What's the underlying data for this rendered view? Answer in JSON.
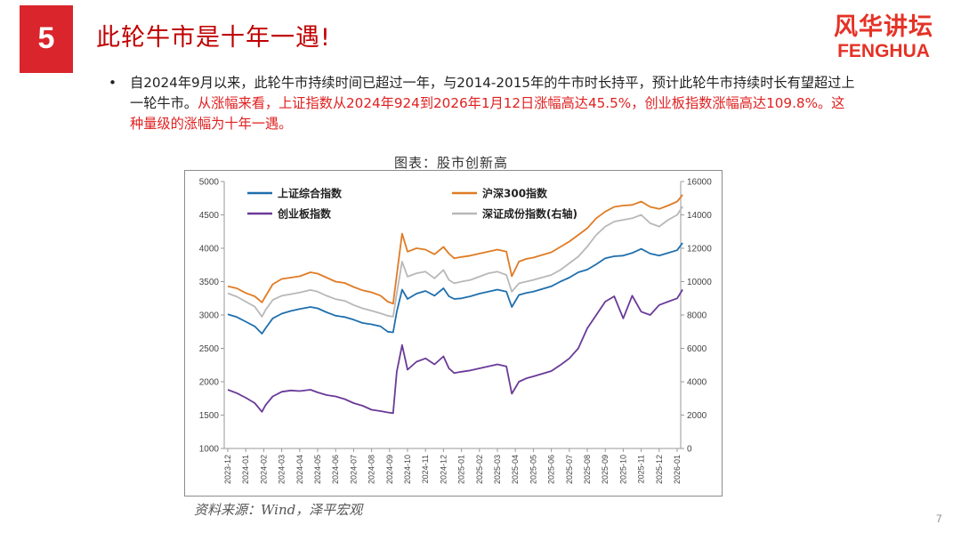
{
  "slide": {
    "number": "5",
    "title": "此轮牛市是十年一遇!",
    "page_number": "7",
    "bullet_marker": "•",
    "bullet_text_black": "自2024年9月以来，此轮牛市持续时间已超过一年，与2014-2015年的牛市时长持平，预计此轮牛市持续时长有望超过上一轮牛市。",
    "bullet_text_red": "从涨幅来看，上证指数从2024年924到2026年1月12日涨幅高达45.5%，创业板指数涨幅高达109.8%。这种量级的涨幅为十年一遇。"
  },
  "logo": {
    "cn": "风华讲坛",
    "en": "FENGHUA"
  },
  "figure": {
    "title": "图表：股市创新高",
    "source": "资料来源：Wind，泽平宏观"
  },
  "colors": {
    "accent_red": "#d9252b",
    "sse": "#1f6fae",
    "csi300": "#e07b24",
    "chinext": "#6a3a98",
    "szse": "#b8b8b8"
  },
  "chart_data": {
    "type": "line",
    "x_tick_labels": [
      "2023-12",
      "2024-01",
      "2024-02",
      "2024-03",
      "2024-04",
      "2024-05",
      "2024-06",
      "2024-07",
      "2024-08",
      "2024-09",
      "2024-10",
      "2024-11",
      "2024-12",
      "2025-01",
      "2025-02",
      "2025-03",
      "2025-04",
      "2025-05",
      "2025-06",
      "2025-07",
      "2025-08",
      "2025-09",
      "2025-10",
      "2025-11",
      "2025-12",
      "2026-01"
    ],
    "y_left": {
      "min": 1000,
      "max": 5000,
      "ticks": [
        1000,
        1500,
        2000,
        2500,
        3000,
        3500,
        4000,
        4500,
        5000
      ]
    },
    "y_right": {
      "min": 0,
      "max": 16000,
      "ticks": [
        0,
        2000,
        4000,
        6000,
        8000,
        10000,
        12000,
        14000,
        16000
      ]
    },
    "legend_placement": "top-left, two columns inside plot",
    "grid": false,
    "series": [
      {
        "name": "上证综合指数",
        "axis": "left",
        "color": "#1f6fae",
        "points": [
          [
            0,
            3010
          ],
          [
            0.5,
            2970
          ],
          [
            1.0,
            2900
          ],
          [
            1.5,
            2830
          ],
          [
            1.9,
            2720
          ],
          [
            2.1,
            2800
          ],
          [
            2.5,
            2950
          ],
          [
            3.0,
            3020
          ],
          [
            3.5,
            3060
          ],
          [
            4.0,
            3090
          ],
          [
            4.6,
            3120
          ],
          [
            5.0,
            3100
          ],
          [
            5.5,
            3040
          ],
          [
            6.0,
            2990
          ],
          [
            6.5,
            2970
          ],
          [
            7.0,
            2930
          ],
          [
            7.5,
            2880
          ],
          [
            8.0,
            2860
          ],
          [
            8.5,
            2830
          ],
          [
            8.9,
            2750
          ],
          [
            9.2,
            2740
          ],
          [
            9.4,
            3050
          ],
          [
            9.7,
            3380
          ],
          [
            10.0,
            3240
          ],
          [
            10.5,
            3320
          ],
          [
            11.0,
            3360
          ],
          [
            11.5,
            3290
          ],
          [
            12.0,
            3400
          ],
          [
            12.3,
            3280
          ],
          [
            12.6,
            3240
          ],
          [
            13.0,
            3250
          ],
          [
            13.5,
            3280
          ],
          [
            14.0,
            3320
          ],
          [
            14.5,
            3350
          ],
          [
            15.0,
            3380
          ],
          [
            15.5,
            3350
          ],
          [
            15.8,
            3120
          ],
          [
            16.2,
            3300
          ],
          [
            16.6,
            3330
          ],
          [
            17.0,
            3350
          ],
          [
            17.5,
            3390
          ],
          [
            18.0,
            3430
          ],
          [
            18.5,
            3500
          ],
          [
            19.0,
            3560
          ],
          [
            19.5,
            3640
          ],
          [
            20.0,
            3680
          ],
          [
            20.5,
            3760
          ],
          [
            21.0,
            3850
          ],
          [
            21.5,
            3880
          ],
          [
            22.0,
            3890
          ],
          [
            22.5,
            3930
          ],
          [
            23.0,
            3990
          ],
          [
            23.5,
            3920
          ],
          [
            24.0,
            3890
          ],
          [
            24.5,
            3930
          ],
          [
            25.0,
            3970
          ],
          [
            25.3,
            4080
          ]
        ]
      },
      {
        "name": "沪深300指数",
        "axis": "left",
        "color": "#e07b24",
        "points": [
          [
            0,
            3430
          ],
          [
            0.5,
            3400
          ],
          [
            1.0,
            3330
          ],
          [
            1.5,
            3280
          ],
          [
            1.9,
            3190
          ],
          [
            2.1,
            3280
          ],
          [
            2.5,
            3460
          ],
          [
            3.0,
            3540
          ],
          [
            3.5,
            3560
          ],
          [
            4.0,
            3580
          ],
          [
            4.6,
            3640
          ],
          [
            5.0,
            3620
          ],
          [
            5.5,
            3560
          ],
          [
            6.0,
            3500
          ],
          [
            6.5,
            3480
          ],
          [
            7.0,
            3420
          ],
          [
            7.5,
            3370
          ],
          [
            8.0,
            3340
          ],
          [
            8.5,
            3290
          ],
          [
            8.9,
            3200
          ],
          [
            9.2,
            3170
          ],
          [
            9.4,
            3600
          ],
          [
            9.7,
            4220
          ],
          [
            10.0,
            3950
          ],
          [
            10.5,
            4000
          ],
          [
            11.0,
            3980
          ],
          [
            11.5,
            3910
          ],
          [
            12.0,
            4020
          ],
          [
            12.3,
            3920
          ],
          [
            12.6,
            3850
          ],
          [
            13.0,
            3870
          ],
          [
            13.5,
            3890
          ],
          [
            14.0,
            3920
          ],
          [
            14.5,
            3950
          ],
          [
            15.0,
            3980
          ],
          [
            15.5,
            3950
          ],
          [
            15.8,
            3580
          ],
          [
            16.2,
            3800
          ],
          [
            16.6,
            3840
          ],
          [
            17.0,
            3860
          ],
          [
            17.5,
            3900
          ],
          [
            18.0,
            3940
          ],
          [
            18.5,
            4020
          ],
          [
            19.0,
            4100
          ],
          [
            19.5,
            4200
          ],
          [
            20.0,
            4300
          ],
          [
            20.5,
            4450
          ],
          [
            21.0,
            4550
          ],
          [
            21.5,
            4620
          ],
          [
            22.0,
            4640
          ],
          [
            22.5,
            4650
          ],
          [
            23.0,
            4700
          ],
          [
            23.5,
            4620
          ],
          [
            24.0,
            4590
          ],
          [
            24.5,
            4640
          ],
          [
            25.0,
            4700
          ],
          [
            25.3,
            4800
          ]
        ]
      },
      {
        "name": "创业板指数",
        "axis": "left",
        "color": "#6a3a98",
        "points": [
          [
            0,
            1880
          ],
          [
            0.5,
            1830
          ],
          [
            1.0,
            1760
          ],
          [
            1.5,
            1680
          ],
          [
            1.9,
            1550
          ],
          [
            2.1,
            1650
          ],
          [
            2.5,
            1780
          ],
          [
            3.0,
            1850
          ],
          [
            3.5,
            1870
          ],
          [
            4.0,
            1860
          ],
          [
            4.6,
            1880
          ],
          [
            5.0,
            1840
          ],
          [
            5.5,
            1800
          ],
          [
            6.0,
            1780
          ],
          [
            6.5,
            1740
          ],
          [
            7.0,
            1680
          ],
          [
            7.5,
            1640
          ],
          [
            8.0,
            1580
          ],
          [
            8.5,
            1560
          ],
          [
            8.9,
            1540
          ],
          [
            9.2,
            1530
          ],
          [
            9.4,
            2150
          ],
          [
            9.7,
            2550
          ],
          [
            10.0,
            2180
          ],
          [
            10.5,
            2300
          ],
          [
            11.0,
            2350
          ],
          [
            11.5,
            2260
          ],
          [
            12.0,
            2380
          ],
          [
            12.3,
            2200
          ],
          [
            12.6,
            2130
          ],
          [
            13.0,
            2150
          ],
          [
            13.5,
            2170
          ],
          [
            14.0,
            2200
          ],
          [
            14.5,
            2230
          ],
          [
            15.0,
            2260
          ],
          [
            15.5,
            2230
          ],
          [
            15.8,
            1820
          ],
          [
            16.2,
            2000
          ],
          [
            16.6,
            2050
          ],
          [
            17.0,
            2080
          ],
          [
            17.5,
            2120
          ],
          [
            18.0,
            2160
          ],
          [
            18.5,
            2250
          ],
          [
            19.0,
            2350
          ],
          [
            19.5,
            2500
          ],
          [
            20.0,
            2800
          ],
          [
            20.5,
            3000
          ],
          [
            21.0,
            3200
          ],
          [
            21.5,
            3280
          ],
          [
            22.0,
            2950
          ],
          [
            22.5,
            3290
          ],
          [
            23.0,
            3050
          ],
          [
            23.5,
            3000
          ],
          [
            24.0,
            3150
          ],
          [
            24.5,
            3200
          ],
          [
            25.0,
            3250
          ],
          [
            25.3,
            3380
          ]
        ]
      },
      {
        "name": "深证成份指数(右轴)",
        "axis": "right",
        "color": "#b8b8b8",
        "points": [
          [
            0,
            9300
          ],
          [
            0.5,
            9100
          ],
          [
            1.0,
            8800
          ],
          [
            1.5,
            8500
          ],
          [
            1.9,
            7900
          ],
          [
            2.1,
            8300
          ],
          [
            2.5,
            8900
          ],
          [
            3.0,
            9150
          ],
          [
            3.5,
            9250
          ],
          [
            4.0,
            9350
          ],
          [
            4.6,
            9500
          ],
          [
            5.0,
            9400
          ],
          [
            5.5,
            9150
          ],
          [
            6.0,
            8950
          ],
          [
            6.5,
            8850
          ],
          [
            7.0,
            8600
          ],
          [
            7.5,
            8400
          ],
          [
            8.0,
            8250
          ],
          [
            8.5,
            8100
          ],
          [
            8.9,
            7950
          ],
          [
            9.2,
            7900
          ],
          [
            9.4,
            9300
          ],
          [
            9.7,
            11200
          ],
          [
            10.0,
            10300
          ],
          [
            10.5,
            10500
          ],
          [
            11.0,
            10600
          ],
          [
            11.5,
            10200
          ],
          [
            12.0,
            10700
          ],
          [
            12.3,
            10100
          ],
          [
            12.6,
            9900
          ],
          [
            13.0,
            10000
          ],
          [
            13.5,
            10100
          ],
          [
            14.0,
            10300
          ],
          [
            14.5,
            10500
          ],
          [
            15.0,
            10600
          ],
          [
            15.5,
            10400
          ],
          [
            15.8,
            9400
          ],
          [
            16.2,
            9900
          ],
          [
            16.6,
            10000
          ],
          [
            17.0,
            10100
          ],
          [
            17.5,
            10250
          ],
          [
            18.0,
            10400
          ],
          [
            18.5,
            10700
          ],
          [
            19.0,
            11100
          ],
          [
            19.5,
            11500
          ],
          [
            20.0,
            12100
          ],
          [
            20.5,
            12800
          ],
          [
            21.0,
            13300
          ],
          [
            21.5,
            13600
          ],
          [
            22.0,
            13700
          ],
          [
            22.5,
            13800
          ],
          [
            23.0,
            14000
          ],
          [
            23.5,
            13500
          ],
          [
            24.0,
            13300
          ],
          [
            24.5,
            13700
          ],
          [
            25.0,
            14000
          ],
          [
            25.3,
            14500
          ]
        ]
      }
    ]
  }
}
